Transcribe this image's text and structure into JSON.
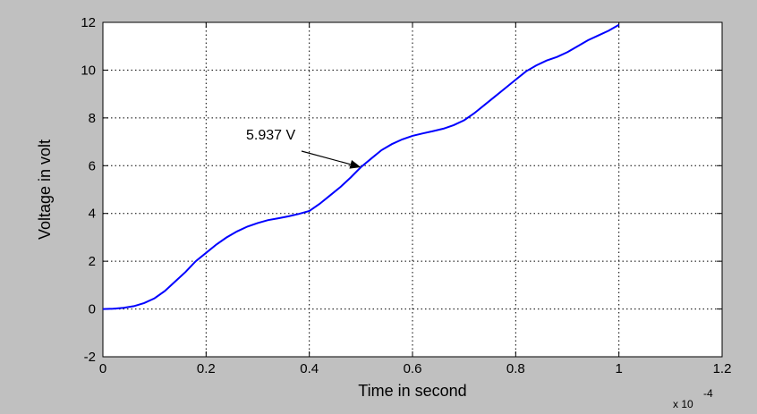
{
  "chart_data": {
    "type": "line",
    "title": "",
    "xlabel": "Time in second",
    "ylabel": "Voltage in volt",
    "x_multiplier_label": "x 10",
    "x_multiplier_exponent": "-4",
    "xlim": [
      0,
      1.2
    ],
    "ylim": [
      -2,
      12
    ],
    "xticks": [
      "0",
      "0.2",
      "0.4",
      "0.6",
      "0.8",
      "1",
      "1.2"
    ],
    "yticks": [
      "-2",
      "0",
      "2",
      "4",
      "6",
      "8",
      "10",
      "12"
    ],
    "grid": true,
    "series": [
      {
        "color": "#0000ff",
        "x": [
          0,
          0.02,
          0.04,
          0.06,
          0.08,
          0.1,
          0.12,
          0.14,
          0.16,
          0.18,
          0.2,
          0.22,
          0.24,
          0.26,
          0.28,
          0.3,
          0.32,
          0.34,
          0.36,
          0.38,
          0.4,
          0.42,
          0.44,
          0.46,
          0.48,
          0.5,
          0.52,
          0.54,
          0.56,
          0.58,
          0.6,
          0.62,
          0.64,
          0.66,
          0.68,
          0.7,
          0.72,
          0.74,
          0.76,
          0.78,
          0.8,
          0.82,
          0.84,
          0.86,
          0.88,
          0.9,
          0.92,
          0.94,
          0.96,
          0.98,
          1.0
        ],
        "y": [
          0,
          0.01,
          0.05,
          0.12,
          0.25,
          0.45,
          0.75,
          1.15,
          1.55,
          2.0,
          2.35,
          2.7,
          3.0,
          3.25,
          3.45,
          3.6,
          3.72,
          3.8,
          3.88,
          3.98,
          4.1,
          4.4,
          4.75,
          5.1,
          5.5,
          5.937,
          6.3,
          6.65,
          6.9,
          7.1,
          7.25,
          7.35,
          7.45,
          7.55,
          7.7,
          7.9,
          8.2,
          8.55,
          8.9,
          9.25,
          9.6,
          9.95,
          10.2,
          10.4,
          10.55,
          10.75,
          11.0,
          11.25,
          11.45,
          11.65,
          11.9
        ]
      }
    ],
    "annotation": {
      "text": "5.937 V",
      "x": 0.5,
      "y": 5.937
    }
  }
}
